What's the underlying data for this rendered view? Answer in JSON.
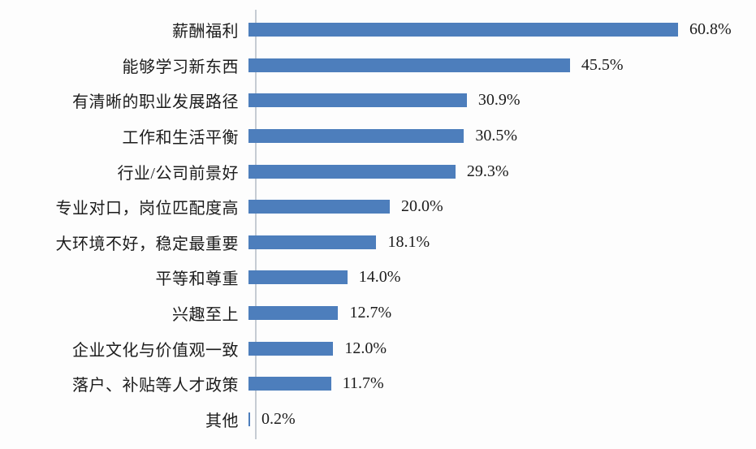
{
  "chart_data": {
    "type": "bar",
    "orientation": "horizontal",
    "title": "",
    "xlabel": "",
    "ylabel": "",
    "categories": [
      "薪酬福利",
      "能够学习新东西",
      "有清晰的职业发展路径",
      "工作和生活平衡",
      "行业/公司前景好",
      "专业对口，岗位匹配度高",
      "大环境不好，稳定最重要",
      "平等和尊重",
      "兴趣至上",
      "企业文化与价值观一致",
      "落户、补贴等人才政策",
      "其他"
    ],
    "values": [
      60.8,
      45.5,
      30.9,
      30.5,
      29.3,
      20.0,
      18.1,
      14.0,
      12.7,
      12.0,
      11.7,
      0.2
    ],
    "value_labels": [
      "60.8%",
      "45.5%",
      "30.9%",
      "30.5%",
      "29.3%",
      "20.0%",
      "18.1%",
      "14.0%",
      "12.7%",
      "12.0%",
      "11.7%",
      "0.2%"
    ],
    "xlim": [
      0,
      70
    ],
    "grid": false,
    "legend": false,
    "colors": {
      "bar": "#4d7ebc",
      "axis_line": "#c6ccd3",
      "text": "#1c1c1c",
      "background": "#fdfdfd"
    }
  }
}
